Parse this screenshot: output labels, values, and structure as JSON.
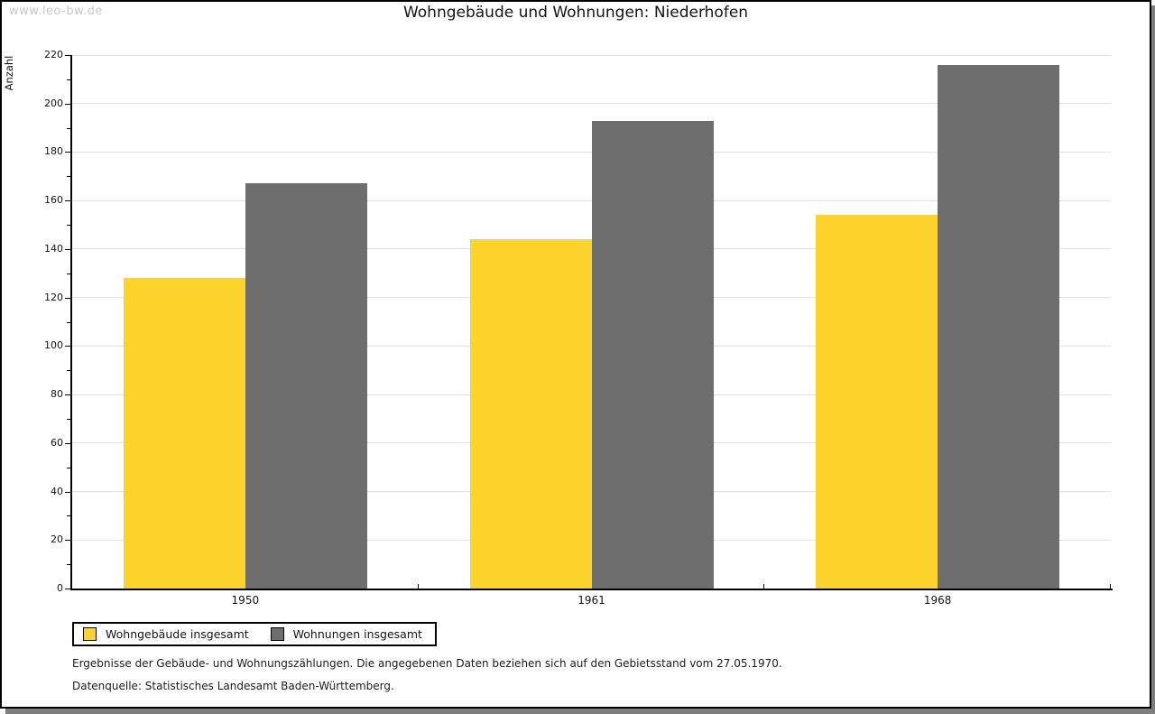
{
  "watermark": "www.leo-bw.de",
  "title": "Wohngebäude und Wohnungen: Niederhofen",
  "chart_data": {
    "type": "bar",
    "categories": [
      "1950",
      "1961",
      "1968"
    ],
    "series": [
      {
        "name": "Wohngebäude insgesamt",
        "color": "#FCD32B",
        "values": [
          128,
          144,
          154
        ]
      },
      {
        "name": "Wohnungen insgesamt",
        "color": "#6E6E6E",
        "values": [
          167,
          193,
          216
        ]
      }
    ],
    "title": "Wohngebäude und Wohnungen: Niederhofen",
    "xlabel": "",
    "ylabel": "Anzahl",
    "ylim": [
      0,
      220
    ],
    "ytick_major": 20,
    "ytick_minor": 10,
    "grid": "horizontal-major",
    "legend_position": "bottom-left",
    "colors": {
      "gridline": "#e2e2e2",
      "axis": "#000000",
      "frame_shadow": "#7e7e7e"
    }
  },
  "footnotes": [
    "Ergebnisse der Gebäude- und Wohnungszählungen. Die angegebenen Daten beziehen sich auf den Gebietsstand vom 27.05.1970.",
    "Datenquelle: Statistisches Landesamt Baden-Württemberg."
  ]
}
